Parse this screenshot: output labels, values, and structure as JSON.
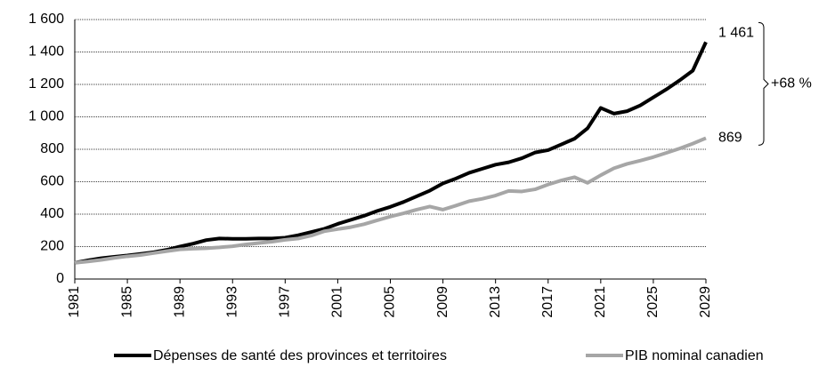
{
  "chart_data": {
    "type": "line",
    "x": [
      1981,
      1982,
      1983,
      1984,
      1985,
      1986,
      1987,
      1988,
      1989,
      1990,
      1991,
      1992,
      1993,
      1994,
      1995,
      1996,
      1997,
      1998,
      1999,
      2000,
      2001,
      2002,
      2003,
      2004,
      2005,
      2006,
      2007,
      2008,
      2009,
      2010,
      2011,
      2012,
      2013,
      2014,
      2015,
      2016,
      2017,
      2018,
      2019,
      2020,
      2021,
      2022,
      2023,
      2024,
      2025,
      2026,
      2027,
      2028,
      2029
    ],
    "xlim": [
      1981,
      2029
    ],
    "xticks": [
      1981,
      1985,
      1989,
      1993,
      1997,
      2001,
      2005,
      2009,
      2013,
      2017,
      2021,
      2025,
      2029
    ],
    "ylim": [
      0,
      1600
    ],
    "yticks": [
      0,
      200,
      400,
      600,
      800,
      {
        "value": 1000,
        "label": "1 000"
      },
      {
        "value": 1200,
        "label": "1 200"
      },
      {
        "value": 1400,
        "label": "1 400"
      },
      {
        "value": 1600,
        "label": "1 600"
      }
    ],
    "grid": true,
    "legend": "bottom",
    "series": [
      {
        "name": "Dépenses de santé des provinces et territoires",
        "color": "#000000",
        "values": [
          100,
          115,
          128,
          137,
          145,
          155,
          165,
          180,
          200,
          218,
          240,
          250,
          248,
          248,
          250,
          250,
          255,
          270,
          290,
          310,
          340,
          365,
          390,
          420,
          445,
          475,
          510,
          545,
          590,
          620,
          655,
          680,
          705,
          720,
          745,
          780,
          795,
          830,
          865,
          930,
          1055,
          1020,
          1035,
          1070,
          1120,
          1170,
          1225,
          1285,
          1461
        ],
        "value_labels": [
          null,
          null,
          null,
          null,
          null,
          null,
          null,
          null,
          null,
          null,
          null,
          null,
          null,
          null,
          null,
          null,
          null,
          null,
          null,
          null,
          null,
          null,
          null,
          null,
          null,
          null,
          null,
          null,
          null,
          null,
          null,
          null,
          null,
          null,
          null,
          null,
          null,
          null,
          null,
          null,
          null,
          null,
          null,
          null,
          null,
          null,
          null,
          null,
          "1 461"
        ]
      },
      {
        "name": "PIB nominal canadien",
        "color": "#a6a6a6",
        "values": [
          100,
          108,
          118,
          130,
          140,
          148,
          160,
          172,
          183,
          187,
          190,
          195,
          202,
          213,
          222,
          230,
          242,
          250,
          268,
          295,
          308,
          320,
          338,
          362,
          385,
          405,
          428,
          447,
          428,
          453,
          480,
          495,
          515,
          543,
          540,
          553,
          583,
          608,
          628,
          593,
          640,
          683,
          710,
          730,
          752,
          778,
          805,
          835,
          869
        ]
      }
    ],
    "annotation": "+68 %"
  }
}
